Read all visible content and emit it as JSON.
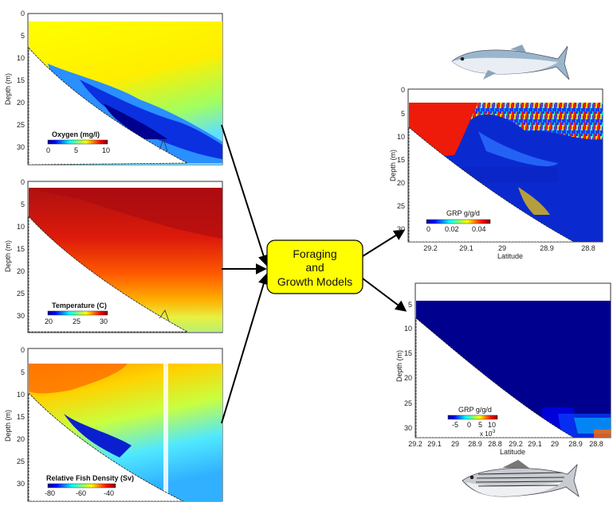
{
  "center_box": {
    "lines": [
      "Foraging",
      "and",
      "Growth Models"
    ],
    "fill": "#ffff00"
  },
  "panels": {
    "oxygen": {
      "ylabel": "Depth (m)",
      "yticks": [
        "0",
        "5",
        "10",
        "15",
        "20",
        "25",
        "30"
      ],
      "colorbar": {
        "title": "Oxygen (mg/l)",
        "ticks": [
          "0",
          "5",
          "10"
        ]
      }
    },
    "temperature": {
      "ylabel": "Depth (m)",
      "yticks": [
        "0",
        "5",
        "10",
        "15",
        "20",
        "25",
        "30"
      ],
      "colorbar": {
        "title": "Temperature (C)",
        "ticks": [
          "20",
          "25",
          "30"
        ]
      }
    },
    "fish_density": {
      "ylabel": "Depth (m)",
      "yticks": [
        "0",
        "5",
        "10",
        "15",
        "20",
        "25",
        "30"
      ],
      "colorbar": {
        "title": "Relative Fish Density (Sv)",
        "ticks": [
          "-80",
          "-60",
          "-40"
        ]
      }
    },
    "grp_bluefish": {
      "ylabel": "Depth (m)",
      "yticks": [
        "0",
        "5",
        "10",
        "15",
        "20",
        "25",
        "30"
      ],
      "xticks": [
        "29.2",
        "29.1",
        "29",
        "28.9",
        "28.8"
      ],
      "xlabel": "Latitude",
      "colorbar": {
        "title": "GRP g/g/d",
        "ticks": [
          "0",
          "0.02",
          "0.04"
        ]
      }
    },
    "grp_striped_bass": {
      "ylabel": "Depth (m)",
      "yticks": [
        "5",
        "10",
        "15",
        "20",
        "25",
        "30"
      ],
      "xticks": [
        "29.2",
        "29.1",
        "29",
        "28.9",
        "28.8",
        "29.2",
        "29.1",
        "29",
        "28.9",
        "28.8"
      ],
      "xlabel": "Latitude",
      "colorbar": {
        "title": "GRP g/g/d",
        "ticks": [
          "-5",
          "0",
          "5",
          "10"
        ],
        "multiplier": "x 10",
        "exponent": "-3"
      }
    }
  },
  "colors": {
    "arrow": "#000000",
    "seabed": "#ffffff"
  }
}
